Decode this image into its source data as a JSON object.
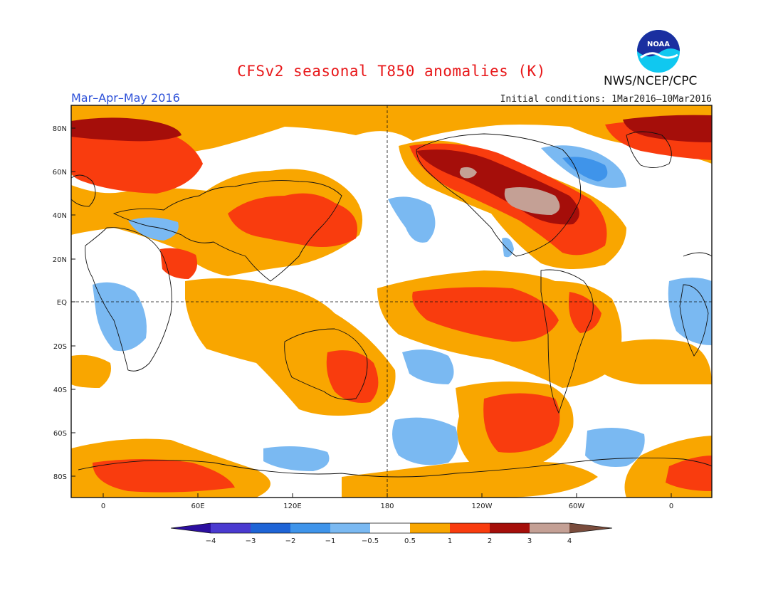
{
  "header": {
    "title": "CFSv2 seasonal T850 anomalies (K)",
    "period": "Mar–Apr–May 2016",
    "initial_conditions": "Initial conditions: 1Mar2016–10Mar2016",
    "agency": "NWS/NCEP/CPC",
    "logo_text": "NOAA"
  },
  "map": {
    "lat_labels": [
      "80N",
      "60N",
      "40N",
      "20N",
      "EQ",
      "20S",
      "40S",
      "60S",
      "80S"
    ],
    "lon_labels": [
      "0",
      "60E",
      "120E",
      "180",
      "120W",
      "60W",
      "0"
    ]
  },
  "colorbar": {
    "labels": [
      "−4",
      "−3",
      "−2",
      "−1",
      "−0.5",
      "0.5",
      "1",
      "2",
      "3",
      "4"
    ],
    "colors": {
      "lt_neg4": "#2c0fa0",
      "neg4_neg3": "#4a3ad0",
      "neg3_neg2": "#1e64d6",
      "neg2_neg1": "#3f94ea",
      "neg1_neg05": "#7ab9f2",
      "neg05_05": "#ffffff",
      "p05_1": "#f9a600",
      "p1_2": "#f93c0e",
      "p2_3": "#a50e0a",
      "p3_4": "#c4a095",
      "gt4": "#7a4c3c"
    }
  }
}
